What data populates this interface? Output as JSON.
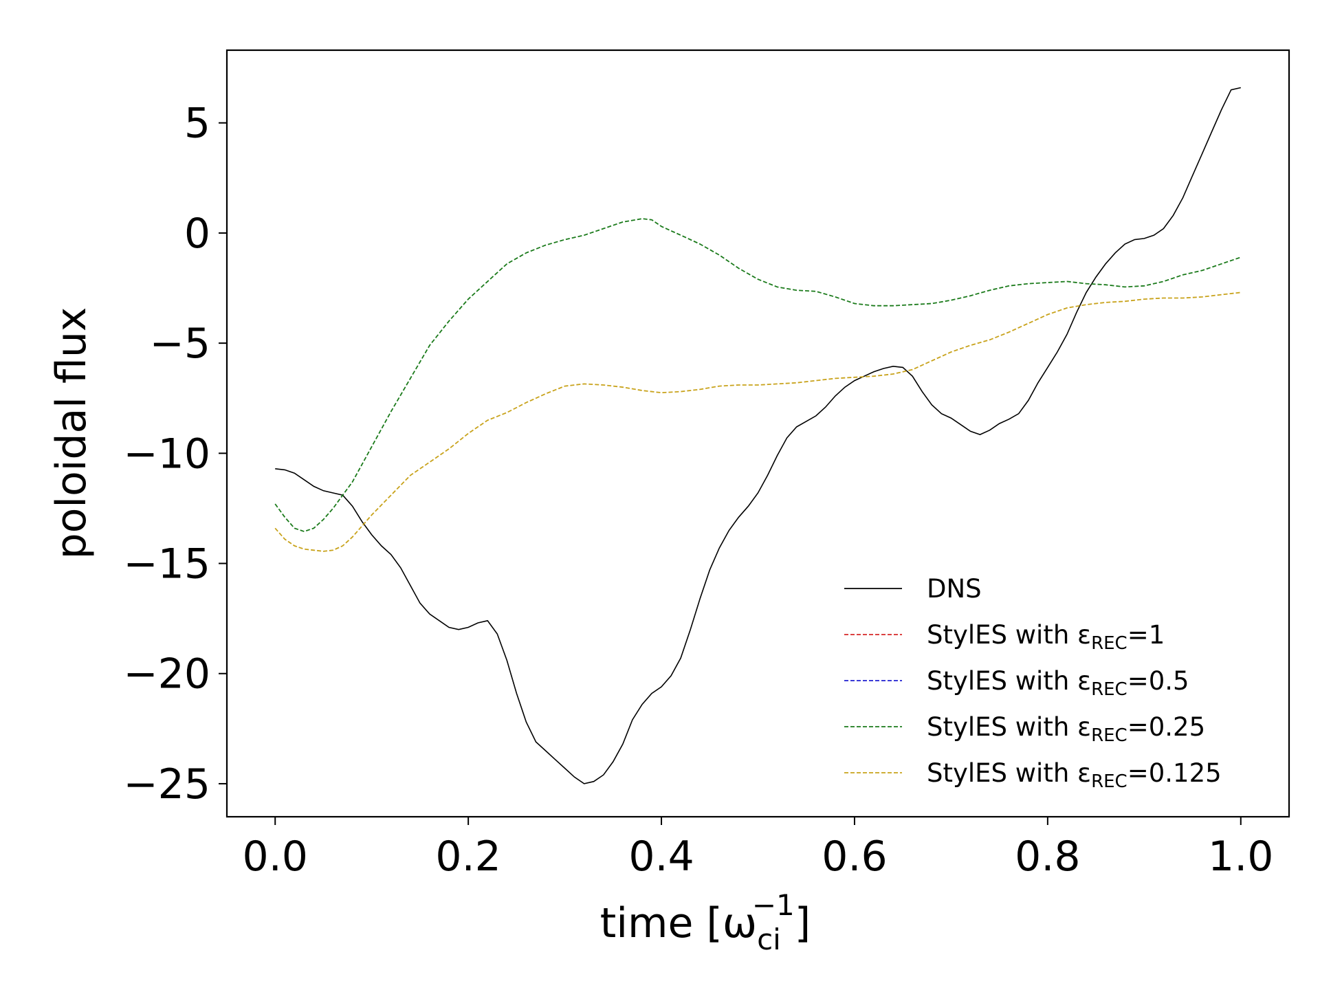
{
  "chart_data": {
    "type": "line",
    "xlabel": "time [ω",
    "xlabel_sub": "ci",
    "xlabel_sup": "−1",
    "xlabel_end": "]",
    "ylabel": "poloidal flux",
    "xlim": [
      -0.05,
      1.05
    ],
    "ylim": [
      -26.5,
      8.3
    ],
    "xticks": [
      0.0,
      0.2,
      0.4,
      0.6,
      0.8,
      1.0
    ],
    "xtick_labels": [
      "0.0",
      "0.2",
      "0.4",
      "0.6",
      "0.8",
      "1.0"
    ],
    "yticks": [
      5,
      0,
      -5,
      -10,
      -15,
      -20,
      -25
    ],
    "ytick_labels": [
      "5",
      "0",
      "−5",
      "−10",
      "−15",
      "−20",
      "−25"
    ],
    "grid": false,
    "legend_position": "lower-right",
    "series": [
      {
        "name": "DNS",
        "color": "#000000",
        "style": "solid",
        "x": [
          0.0,
          0.01,
          0.02,
          0.03,
          0.04,
          0.05,
          0.06,
          0.07,
          0.08,
          0.09,
          0.1,
          0.11,
          0.12,
          0.13,
          0.14,
          0.15,
          0.16,
          0.17,
          0.18,
          0.19,
          0.2,
          0.21,
          0.22,
          0.23,
          0.24,
          0.25,
          0.26,
          0.27,
          0.28,
          0.29,
          0.3,
          0.31,
          0.32,
          0.33,
          0.34,
          0.35,
          0.36,
          0.37,
          0.38,
          0.39,
          0.4,
          0.41,
          0.42,
          0.43,
          0.44,
          0.45,
          0.46,
          0.47,
          0.48,
          0.49,
          0.5,
          0.51,
          0.52,
          0.53,
          0.54,
          0.55,
          0.56,
          0.57,
          0.58,
          0.59,
          0.6,
          0.61,
          0.62,
          0.63,
          0.64,
          0.65,
          0.66,
          0.67,
          0.68,
          0.69,
          0.7,
          0.71,
          0.72,
          0.73,
          0.74,
          0.75,
          0.76,
          0.77,
          0.78,
          0.79,
          0.8,
          0.81,
          0.82,
          0.83,
          0.84,
          0.85,
          0.86,
          0.87,
          0.88,
          0.89,
          0.9,
          0.91,
          0.92,
          0.93,
          0.94,
          0.95,
          0.96,
          0.97,
          0.98,
          0.99,
          1.0
        ],
        "y": [
          -10.7,
          -10.75,
          -10.9,
          -11.2,
          -11.5,
          -11.7,
          -11.8,
          -11.9,
          -12.4,
          -13.1,
          -13.7,
          -14.2,
          -14.6,
          -15.2,
          -16.0,
          -16.8,
          -17.3,
          -17.6,
          -17.9,
          -18.0,
          -17.9,
          -17.7,
          -17.6,
          -18.2,
          -19.4,
          -20.9,
          -22.2,
          -23.1,
          -23.5,
          -23.9,
          -24.3,
          -24.7,
          -25.0,
          -24.9,
          -24.6,
          -24.0,
          -23.2,
          -22.1,
          -21.4,
          -20.9,
          -20.6,
          -20.1,
          -19.3,
          -18.0,
          -16.6,
          -15.3,
          -14.3,
          -13.5,
          -12.9,
          -12.4,
          -11.8,
          -11.0,
          -10.1,
          -9.3,
          -8.8,
          -8.55,
          -8.3,
          -7.9,
          -7.4,
          -7.0,
          -6.7,
          -6.5,
          -6.3,
          -6.15,
          -6.05,
          -6.1,
          -6.5,
          -7.2,
          -7.8,
          -8.2,
          -8.4,
          -8.7,
          -9.0,
          -9.15,
          -8.95,
          -8.65,
          -8.45,
          -8.2,
          -7.6,
          -6.8,
          -6.1,
          -5.4,
          -4.6,
          -3.6,
          -2.7,
          -2.0,
          -1.4,
          -0.9,
          -0.5,
          -0.3,
          -0.25,
          -0.1,
          0.2,
          0.8,
          1.6,
          2.6,
          3.6,
          4.6,
          5.6,
          6.5,
          6.6
        ]
      },
      {
        "name": "StylES with ε",
        "name_sub": "REC",
        "name_value": "=1",
        "color": "#d62728",
        "style": "dashed",
        "x": [],
        "y": []
      },
      {
        "name": "StylES with ε",
        "name_sub": "REC",
        "name_value": "=0.5",
        "color": "#1f1fd0",
        "style": "dashed",
        "x": [],
        "y": []
      },
      {
        "name": "StylES with ε",
        "name_sub": "REC",
        "name_value": "=0.25",
        "color": "#1a7a1a",
        "style": "dashed",
        "x": [
          0.0,
          0.01,
          0.02,
          0.03,
          0.04,
          0.05,
          0.06,
          0.07,
          0.08,
          0.09,
          0.1,
          0.12,
          0.14,
          0.16,
          0.18,
          0.2,
          0.22,
          0.24,
          0.26,
          0.28,
          0.3,
          0.32,
          0.34,
          0.36,
          0.38,
          0.39,
          0.4,
          0.42,
          0.44,
          0.46,
          0.48,
          0.5,
          0.52,
          0.54,
          0.56,
          0.58,
          0.6,
          0.62,
          0.64,
          0.66,
          0.68,
          0.7,
          0.72,
          0.74,
          0.76,
          0.78,
          0.8,
          0.82,
          0.84,
          0.86,
          0.88,
          0.9,
          0.92,
          0.94,
          0.96,
          0.98,
          1.0
        ],
        "y": [
          -12.3,
          -12.9,
          -13.4,
          -13.55,
          -13.4,
          -13.0,
          -12.5,
          -11.9,
          -11.3,
          -10.5,
          -9.7,
          -8.1,
          -6.6,
          -5.1,
          -4.0,
          -3.0,
          -2.2,
          -1.4,
          -0.9,
          -0.55,
          -0.3,
          -0.1,
          0.2,
          0.5,
          0.65,
          0.6,
          0.3,
          -0.1,
          -0.5,
          -1.0,
          -1.6,
          -2.1,
          -2.45,
          -2.6,
          -2.65,
          -2.9,
          -3.2,
          -3.3,
          -3.3,
          -3.25,
          -3.2,
          -3.05,
          -2.85,
          -2.6,
          -2.4,
          -2.3,
          -2.25,
          -2.2,
          -2.3,
          -2.35,
          -2.45,
          -2.4,
          -2.2,
          -1.9,
          -1.7,
          -1.4,
          -1.1
        ]
      },
      {
        "name": "StylES with ε",
        "name_sub": "REC",
        "name_value": "=0.125",
        "color": "#c8a21a",
        "style": "dashed",
        "x": [
          0.0,
          0.01,
          0.02,
          0.03,
          0.04,
          0.05,
          0.06,
          0.07,
          0.08,
          0.09,
          0.1,
          0.12,
          0.14,
          0.16,
          0.18,
          0.2,
          0.22,
          0.24,
          0.26,
          0.28,
          0.3,
          0.32,
          0.34,
          0.36,
          0.38,
          0.4,
          0.42,
          0.44,
          0.46,
          0.48,
          0.5,
          0.52,
          0.54,
          0.56,
          0.58,
          0.6,
          0.62,
          0.64,
          0.66,
          0.68,
          0.7,
          0.72,
          0.74,
          0.76,
          0.78,
          0.8,
          0.82,
          0.84,
          0.86,
          0.88,
          0.9,
          0.92,
          0.94,
          0.96,
          0.98,
          1.0
        ],
        "y": [
          -13.4,
          -13.9,
          -14.2,
          -14.35,
          -14.4,
          -14.45,
          -14.4,
          -14.2,
          -13.8,
          -13.3,
          -12.8,
          -11.9,
          -11.0,
          -10.4,
          -9.8,
          -9.1,
          -8.5,
          -8.15,
          -7.7,
          -7.3,
          -6.95,
          -6.85,
          -6.9,
          -7.0,
          -7.15,
          -7.25,
          -7.2,
          -7.1,
          -6.95,
          -6.9,
          -6.9,
          -6.85,
          -6.8,
          -6.7,
          -6.6,
          -6.55,
          -6.5,
          -6.4,
          -6.2,
          -5.8,
          -5.4,
          -5.1,
          -4.85,
          -4.5,
          -4.1,
          -3.7,
          -3.4,
          -3.25,
          -3.15,
          -3.1,
          -3.0,
          -2.95,
          -2.95,
          -2.9,
          -2.8,
          -2.7
        ]
      }
    ]
  }
}
